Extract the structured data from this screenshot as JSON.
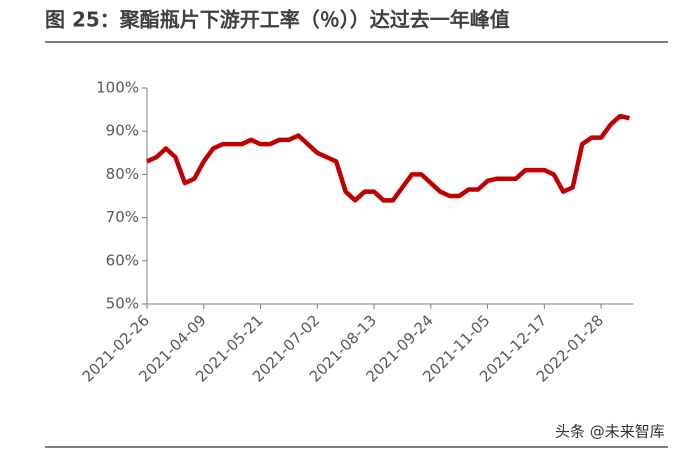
{
  "chart_data": {
    "type": "line",
    "title": "图 25：聚酯瓶片下游开工率（％））达过去一年峰值",
    "annotation": "头条 @未来智库",
    "categories": [
      "2021-02-26",
      null,
      null,
      null,
      null,
      null,
      "2021-04-09",
      null,
      null,
      null,
      null,
      null,
      "2021-05-21",
      null,
      null,
      null,
      null,
      null,
      "2021-07-02",
      null,
      null,
      null,
      null,
      null,
      "2021-08-13",
      null,
      null,
      null,
      null,
      null,
      "2021-09-24",
      null,
      null,
      null,
      null,
      null,
      "2021-11-05",
      null,
      null,
      null,
      null,
      null,
      "2021-12-17",
      null,
      null,
      null,
      null,
      null,
      "2022-01-28",
      null,
      null,
      null
    ],
    "series": [
      {
        "color": "#c00000",
        "values": [
          83,
          84,
          86,
          84,
          78,
          79,
          83,
          86,
          87,
          87,
          87,
          88,
          87,
          87,
          88,
          88,
          89,
          87,
          85,
          84,
          83,
          76,
          74,
          76,
          76,
          74,
          74,
          77,
          80,
          80,
          78,
          76,
          75,
          75,
          76.5,
          76.5,
          78.5,
          79,
          79,
          79,
          81,
          81,
          81,
          80,
          76,
          77,
          87,
          88.5,
          88.5,
          91.5,
          93.5,
          93
        ]
      }
    ],
    "ylim": [
      50,
      100
    ],
    "yticks": [
      {
        "value": 50,
        "label": "50%"
      },
      {
        "value": 60,
        "label": "60%"
      },
      {
        "value": 70,
        "label": "70%"
      },
      {
        "value": 80,
        "label": "80%"
      },
      {
        "value": 90,
        "label": "90%"
      },
      {
        "value": 100,
        "label": "100%"
      }
    ]
  }
}
